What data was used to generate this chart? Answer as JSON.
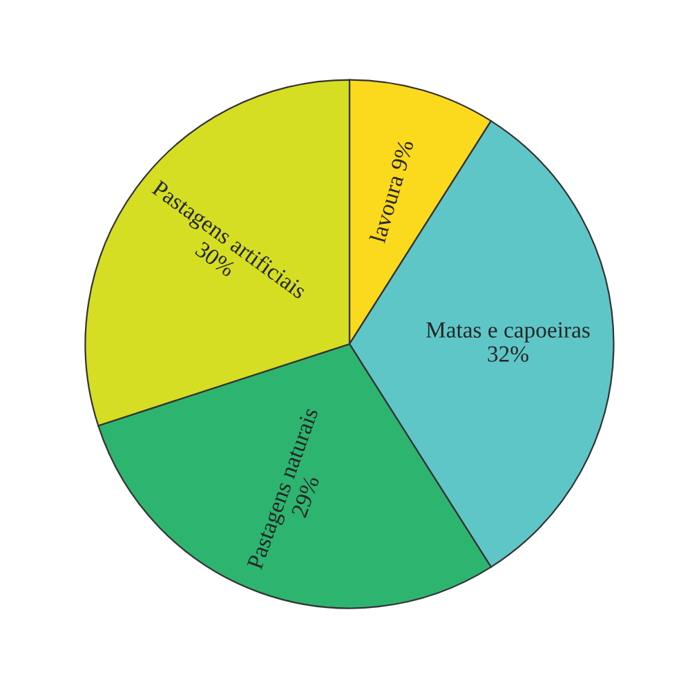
{
  "chart_data": {
    "type": "pie",
    "categories": [
      "lavoura",
      "Matas e capoeiras",
      "Pastagens naturais",
      "Pastagens artificiais"
    ],
    "values": [
      9,
      32,
      29,
      30
    ],
    "value_labels": [
      "9%",
      "32%",
      "29%",
      "30%"
    ],
    "colors": [
      "#fbd91c",
      "#5fc6c8",
      "#2db570",
      "#d5de23"
    ]
  }
}
